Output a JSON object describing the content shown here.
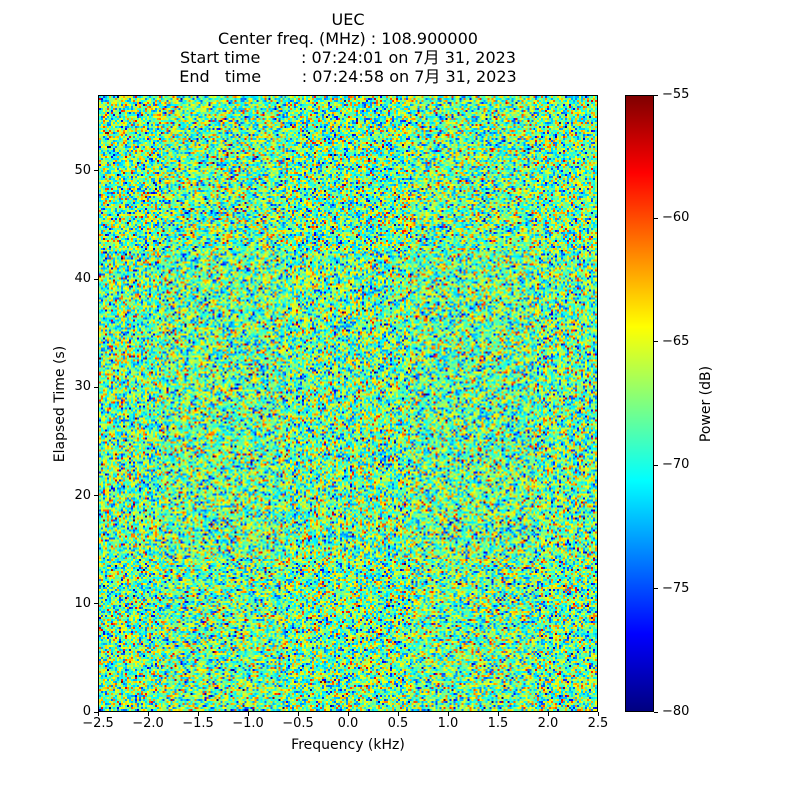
{
  "chart_data": {
    "type": "heatmap",
    "title_lines": [
      "UEC",
      "Center freq. (MHz) : 108.900000",
      "Start time        : 07:24:01 on 7月 31, 2023",
      "End   time        : 07:24:58 on 7月 31, 2023"
    ],
    "xlabel": "Frequency (kHz)",
    "ylabel": "Elapsed Time (s)",
    "colorbar_label": "Power (dB)",
    "xlim": [
      -2.5,
      2.5
    ],
    "ylim": [
      0,
      57
    ],
    "clim": [
      -80,
      -55
    ],
    "x_ticks": [
      -2.5,
      -2.0,
      -1.5,
      -1.0,
      -0.5,
      0.0,
      0.5,
      1.0,
      1.5,
      2.0,
      2.5
    ],
    "x_tick_labels": [
      "−2.5",
      "−2.0",
      "−1.5",
      "−1.0",
      "−0.5",
      "0.0",
      "0.5",
      "1.0",
      "1.5",
      "2.0",
      "2.5"
    ],
    "y_ticks": [
      0,
      10,
      20,
      30,
      40,
      50
    ],
    "y_tick_labels": [
      "0",
      "10",
      "20",
      "30",
      "40",
      "50"
    ],
    "colorbar_ticks": [
      -55,
      -60,
      -65,
      -70,
      -75,
      -80
    ],
    "colorbar_tick_labels": [
      "−55",
      "−60",
      "−65",
      "−70",
      "−75",
      "−80"
    ],
    "colormap": "jet",
    "colormap_stops": [
      {
        "pos": 0.0,
        "color": "#000080"
      },
      {
        "pos": 0.125,
        "color": "#0000ff"
      },
      {
        "pos": 0.375,
        "color": "#00ffff"
      },
      {
        "pos": 0.625,
        "color": "#ffff00"
      },
      {
        "pos": 0.875,
        "color": "#ff0000"
      },
      {
        "pos": 1.0,
        "color": "#800000"
      }
    ],
    "noise": {
      "mean_db": -68,
      "std_db": 4,
      "seed": 42,
      "cols": 250,
      "rows": 308
    },
    "grid": false,
    "legend": null
  }
}
